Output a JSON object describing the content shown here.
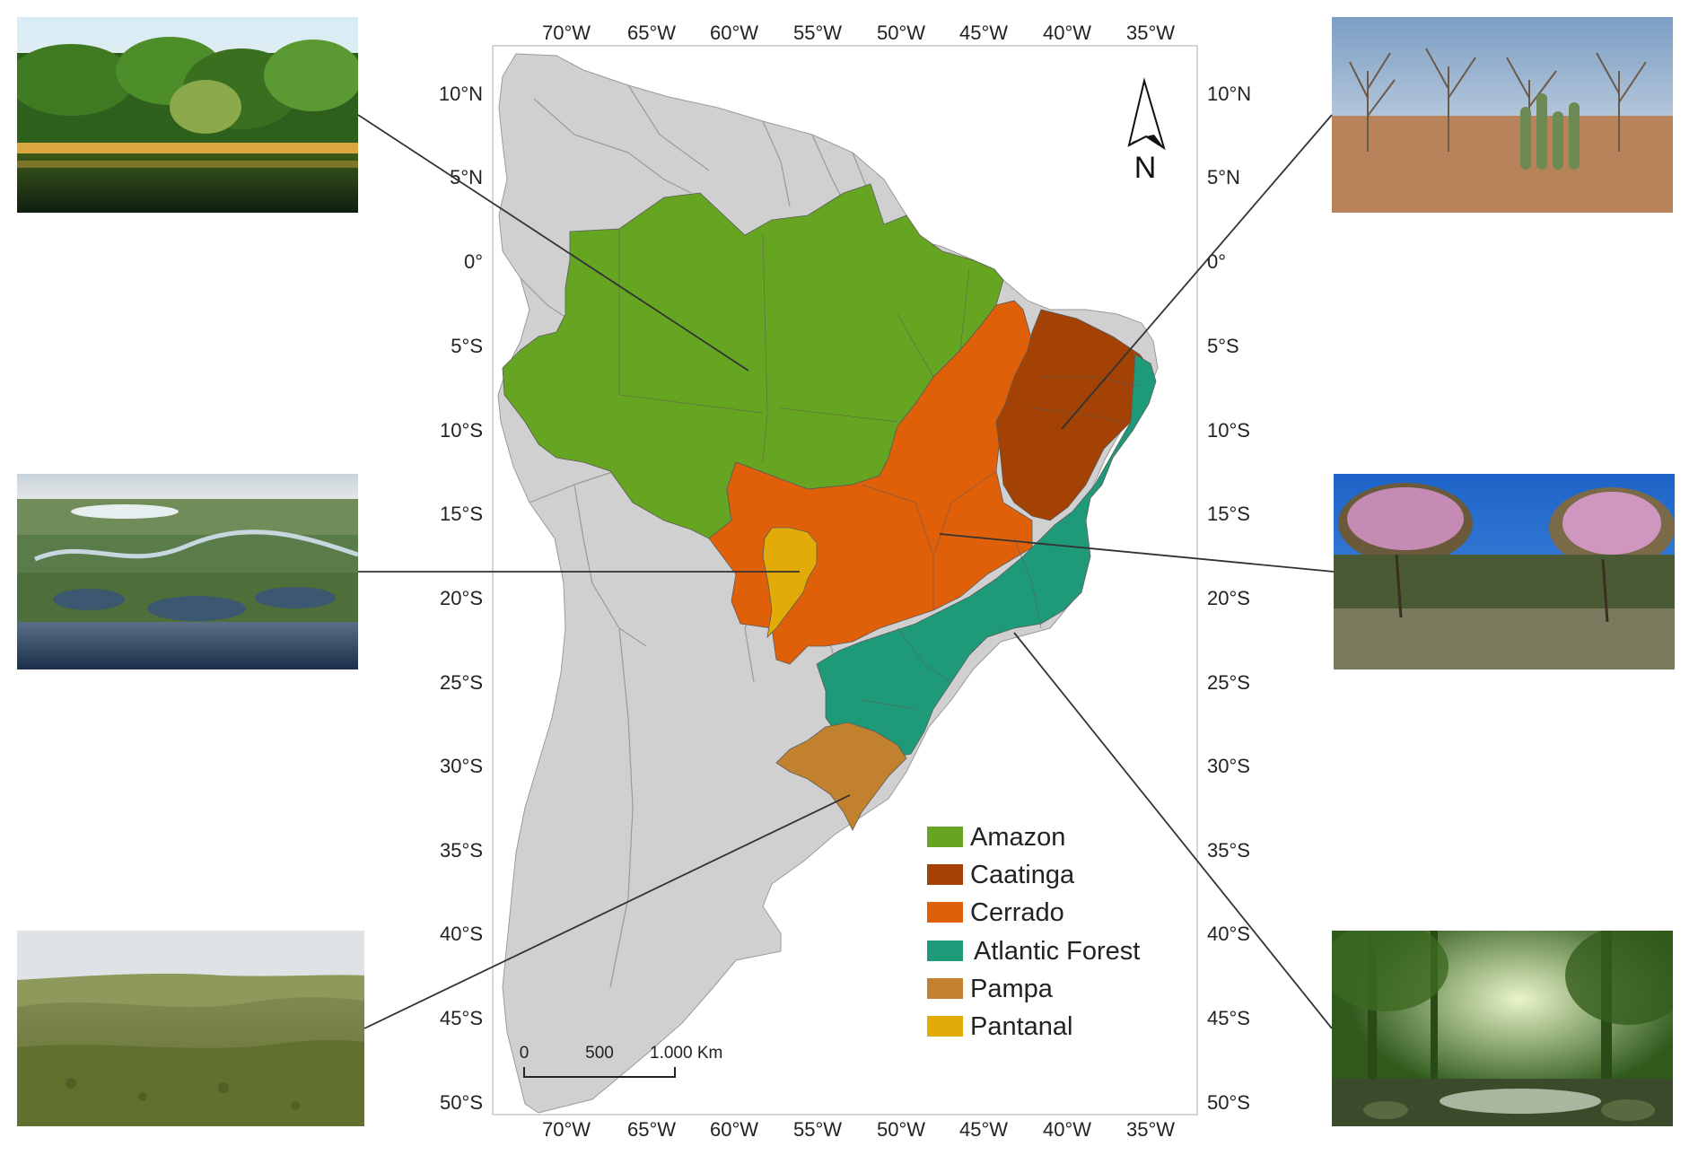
{
  "map": {
    "lon_labels": [
      "70°W",
      "65°W",
      "60°W",
      "55°W",
      "50°W",
      "45°W",
      "40°W",
      "35°W"
    ],
    "lat_labels": [
      "10°N",
      "5°N",
      "0°",
      "5°S",
      "10°S",
      "15°S",
      "20°S",
      "25°S",
      "30°S",
      "35°S",
      "40°S",
      "45°S",
      "50°S"
    ],
    "north_label": "N",
    "scale": {
      "zero": "0",
      "mid": "500",
      "end": "1.000 Km"
    },
    "colors": {
      "land": "#d0d0d0",
      "border": "#8c8c8c",
      "amazon": "#66a522",
      "caatinga": "#a34204",
      "cerrado": "#e0600a",
      "atlantic_forest": "#1f9a78",
      "pampa": "#c2812f",
      "pantanal": "#e3ab07"
    },
    "legend": [
      {
        "label": "Amazon",
        "color": "#66a522"
      },
      {
        "label": "Caatinga",
        "color": "#a34204"
      },
      {
        "label": "Cerrado",
        "color": "#e0600a"
      },
      {
        "label": "Atlantic Forest",
        "color": "#1f9a78"
      },
      {
        "label": "Pampa",
        "color": "#c2812f"
      },
      {
        "label": "Pantanal",
        "color": "#e3ab07"
      }
    ]
  },
  "photos": [
    {
      "biome": "Amazon",
      "scene": "rainforest-river-photo"
    },
    {
      "biome": "Pantanal",
      "scene": "wetland-aerial-photo"
    },
    {
      "biome": "Pampa",
      "scene": "grassland-hills-photo"
    },
    {
      "biome": "Caatinga",
      "scene": "dry-scrub-cactus-photo"
    },
    {
      "biome": "Cerrado",
      "scene": "savanna-flowering-trees-photo"
    },
    {
      "biome": "Atlantic Forest",
      "scene": "forest-stream-photo"
    }
  ]
}
